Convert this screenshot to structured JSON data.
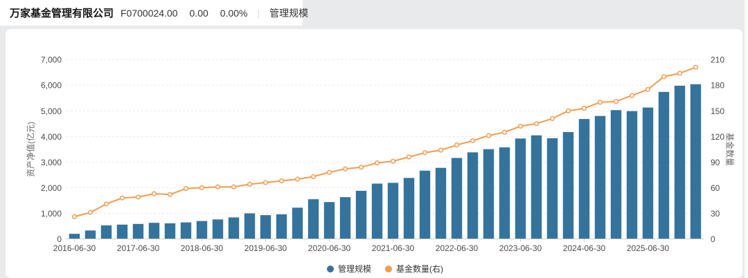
{
  "header": {
    "company_name": "万家基金管理有限公司",
    "code": "F0700024.00",
    "value": "0.00",
    "change_percent": "0.00%",
    "separator": "|",
    "tab": "管理规模"
  },
  "legend": {
    "items": [
      {
        "label": "管理规模",
        "color": "#33749e"
      },
      {
        "label": "基金数量(右)",
        "color": "#f59a49"
      }
    ]
  },
  "colors": {
    "bar": "#33749e",
    "line": "#f59a49",
    "grid": "#e6e8eb",
    "axis_line": "#cccccc",
    "tick_text": "#4a4a4a",
    "page_bg": "#e8eaec",
    "card_bg": "#ffffff"
  },
  "chart_data": {
    "type": "combo-bar-line-dual-axis",
    "n_points": 40,
    "x_tick_interval": 4,
    "x_tick_labels": [
      "2016-06-30",
      "2017-06-30",
      "2018-06-30",
      "2019-06-30",
      "2020-06-30",
      "2021-06-30",
      "2022-06-30",
      "2023-06-30",
      "2024-06-30",
      "2025-06-30"
    ],
    "left_axis": {
      "name": "资产净值(亿元)",
      "min": 0,
      "max": 7000,
      "tick_labels": [
        "0",
        "1,000",
        "2,000",
        "3,000",
        "4,000",
        "5,000",
        "6,000",
        "7,000"
      ]
    },
    "right_axis": {
      "name": "基金数量",
      "min": 0,
      "max": 210,
      "tick_labels": [
        "0",
        "30",
        "60",
        "90",
        "120",
        "150",
        "180",
        "210"
      ]
    },
    "grid": true,
    "legend_position": "bottom-center",
    "series": [
      {
        "name": "管理规模",
        "type": "bar",
        "axis": "left",
        "color": "#33749e",
        "values": [
          200,
          330,
          530,
          560,
          585,
          630,
          610,
          645,
          700,
          760,
          840,
          1000,
          930,
          960,
          1220,
          1550,
          1440,
          1630,
          1880,
          2160,
          2190,
          2380,
          2665,
          2775,
          3160,
          3380,
          3505,
          3575,
          3920,
          4045,
          3930,
          4170,
          4680,
          4800,
          5030,
          4990,
          5130,
          5740,
          5980,
          6040
        ]
      },
      {
        "name": "基金数量(右)",
        "type": "line",
        "axis": "right",
        "color": "#f59a49",
        "marker": "circle-open",
        "values": [
          26,
          31,
          41,
          48,
          49,
          53,
          52,
          59,
          60,
          61,
          61,
          64,
          66,
          68,
          70,
          73,
          78,
          82,
          84,
          89,
          91,
          96,
          101,
          104,
          110,
          115,
          121,
          125,
          132,
          135,
          141,
          150,
          153,
          160,
          161,
          168,
          175,
          190,
          194,
          201
        ]
      }
    ]
  }
}
